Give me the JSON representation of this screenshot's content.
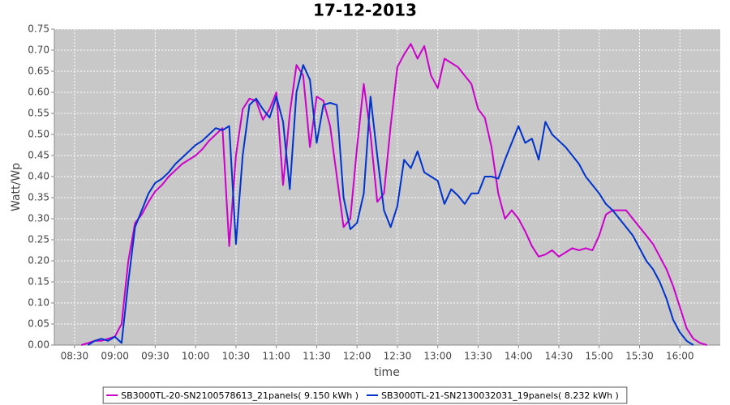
{
  "chart_data": {
    "type": "line",
    "title": "17-12-2013",
    "x_label": "time",
    "y_label": "Watt/Wp",
    "x": [
      "08:35",
      "08:40",
      "08:45",
      "08:50",
      "08:55",
      "09:00",
      "09:05",
      "09:10",
      "09:15",
      "09:20",
      "09:25",
      "09:30",
      "09:35",
      "09:40",
      "09:45",
      "09:50",
      "09:55",
      "10:00",
      "10:05",
      "10:10",
      "10:15",
      "10:20",
      "10:25",
      "10:30",
      "10:35",
      "10:40",
      "10:45",
      "10:50",
      "10:55",
      "11:00",
      "11:05",
      "11:10",
      "11:15",
      "11:20",
      "11:25",
      "11:30",
      "11:35",
      "11:40",
      "11:45",
      "11:50",
      "11:55",
      "12:00",
      "12:05",
      "12:10",
      "12:15",
      "12:20",
      "12:25",
      "12:30",
      "12:35",
      "12:40",
      "12:45",
      "12:50",
      "12:55",
      "13:00",
      "13:05",
      "13:10",
      "13:15",
      "13:20",
      "13:25",
      "13:30",
      "13:35",
      "13:40",
      "13:45",
      "13:50",
      "13:55",
      "14:00",
      "14:05",
      "14:10",
      "14:15",
      "14:20",
      "14:25",
      "14:30",
      "14:35",
      "14:40",
      "14:45",
      "14:50",
      "14:55",
      "15:00",
      "15:05",
      "15:10",
      "15:15",
      "15:20",
      "15:25",
      "15:30",
      "15:35",
      "15:40",
      "15:45",
      "15:50",
      "15:55",
      "16:00",
      "16:05",
      "16:10",
      "16:15",
      "16:20"
    ],
    "series": [
      {
        "name": "SB3000TL-20-SN2100578613_21panels( 9.150 kWh )",
        "color": "#cc00cc",
        "values": [
          0,
          0.005,
          0.01,
          0.01,
          0.015,
          0.02,
          0.05,
          0.2,
          0.29,
          0.31,
          0.34,
          0.365,
          0.38,
          0.4,
          0.415,
          0.43,
          0.44,
          0.45,
          0.465,
          0.485,
          0.5,
          0.515,
          0.235,
          0.45,
          0.56,
          0.585,
          0.58,
          0.535,
          0.56,
          0.6,
          0.38,
          0.55,
          0.665,
          0.64,
          0.47,
          0.59,
          0.58,
          0.52,
          0.4,
          0.28,
          0.3,
          0.47,
          0.62,
          0.5,
          0.34,
          0.36,
          0.52,
          0.66,
          0.69,
          0.715,
          0.68,
          0.71,
          0.64,
          0.61,
          0.68,
          0.67,
          0.66,
          0.64,
          0.62,
          0.56,
          0.54,
          0.47,
          0.36,
          0.3,
          0.32,
          0.3,
          0.27,
          0.235,
          0.21,
          0.215,
          0.225,
          0.21,
          0.22,
          0.23,
          0.225,
          0.23,
          0.225,
          0.26,
          0.31,
          0.32,
          0.32,
          0.32,
          0.3,
          0.28,
          0.26,
          0.24,
          0.21,
          0.18,
          0.14,
          0.09,
          0.04,
          0.015,
          0.005,
          0
        ]
      },
      {
        "name": "SB3000TL-21-SN2130032031_19panels( 8.232 kWh )",
        "color": "#0033cc",
        "values": [
          null,
          0,
          0.01,
          0.015,
          0.01,
          0.02,
          0.005,
          0.15,
          0.28,
          0.32,
          0.36,
          0.385,
          0.395,
          0.41,
          0.43,
          0.445,
          0.46,
          0.475,
          0.485,
          0.5,
          0.515,
          0.51,
          0.52,
          0.24,
          0.45,
          0.57,
          0.585,
          0.56,
          0.54,
          0.59,
          0.53,
          0.37,
          0.6,
          0.665,
          0.63,
          0.48,
          0.57,
          0.575,
          0.57,
          0.35,
          0.275,
          0.29,
          0.36,
          0.59,
          0.45,
          0.32,
          0.28,
          0.33,
          0.44,
          0.42,
          0.46,
          0.41,
          0.4,
          0.39,
          0.335,
          0.37,
          0.355,
          0.335,
          0.36,
          0.36,
          0.4,
          0.4,
          0.395,
          0.44,
          0.48,
          0.52,
          0.48,
          0.49,
          0.44,
          0.53,
          0.5,
          0.485,
          0.47,
          0.45,
          0.43,
          0.4,
          0.38,
          0.36,
          0.335,
          0.32,
          0.3,
          0.28,
          0.26,
          0.23,
          0.2,
          0.18,
          0.15,
          0.11,
          0.06,
          0.03,
          0.01,
          0,
          null,
          null
        ]
      }
    ],
    "xlim": [
      "08:15",
      "16:30"
    ],
    "xticks": [
      "08:30",
      "09:00",
      "09:30",
      "10:00",
      "10:30",
      "11:00",
      "11:30",
      "12:00",
      "12:30",
      "13:00",
      "13:30",
      "14:00",
      "14:30",
      "15:00",
      "15:30",
      "16:00"
    ],
    "ylim": [
      0,
      0.75
    ],
    "yticks": [
      {
        "value": 0,
        "label": "0.00"
      },
      {
        "value": 0.05,
        "label": "0.05"
      },
      {
        "value": 0.1,
        "label": "0.10"
      },
      {
        "value": 0.15,
        "label": "0.15"
      },
      {
        "value": 0.2,
        "label": "0.20"
      },
      {
        "value": 0.25,
        "label": "0.25"
      },
      {
        "value": 0.3,
        "label": "0.30"
      },
      {
        "value": 0.35,
        "label": "0.35"
      },
      {
        "value": 0.4,
        "label": "0.40"
      },
      {
        "value": 0.45,
        "label": "0.45"
      },
      {
        "value": 0.5,
        "label": "0.50"
      },
      {
        "value": 0.55,
        "label": "0.55"
      },
      {
        "value": 0.6,
        "label": "0.60"
      },
      {
        "value": 0.65,
        "label": "0.65"
      },
      {
        "value": 0.7,
        "label": "0.70"
      },
      {
        "value": 0.75,
        "label": "0.75"
      }
    ],
    "grid": true,
    "legend": "bottom"
  }
}
